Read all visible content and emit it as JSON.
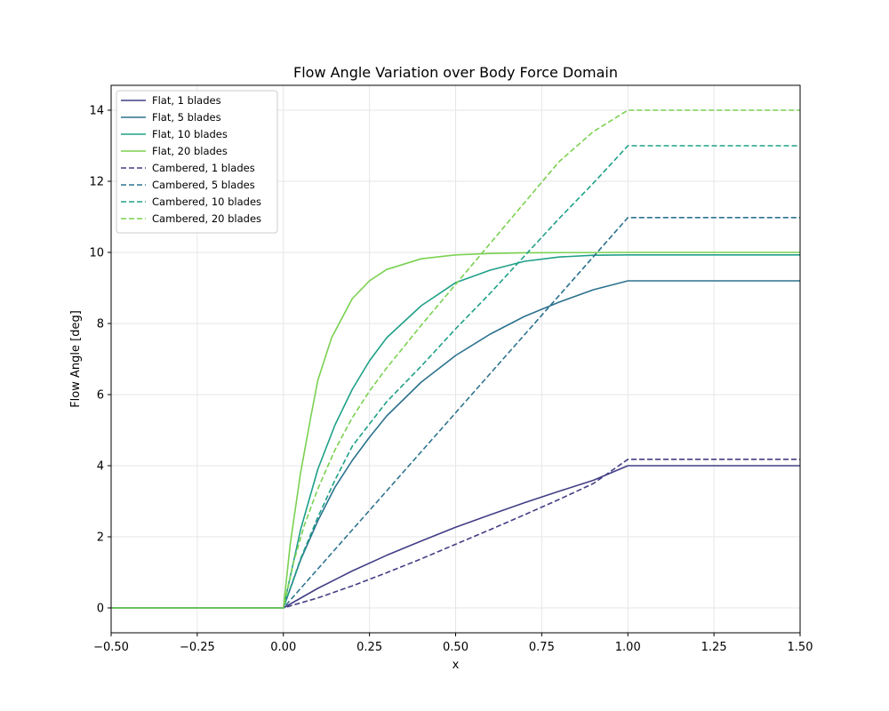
{
  "chart_data": {
    "type": "line",
    "title": "Flow Angle Variation over Body Force Domain",
    "xlabel": "x",
    "ylabel": "Flow Angle [deg]",
    "xlim": [
      -0.5,
      1.5
    ],
    "ylim": [
      -0.7,
      14.7
    ],
    "xticks": [
      -0.5,
      -0.25,
      0.0,
      0.25,
      0.5,
      0.75,
      1.0,
      1.25,
      1.5
    ],
    "xtick_labels": [
      "−0.50",
      "−0.25",
      "0.00",
      "0.25",
      "0.50",
      "0.75",
      "1.00",
      "1.25",
      "1.50"
    ],
    "yticks": [
      0,
      2,
      4,
      6,
      8,
      10,
      12,
      14
    ],
    "ytick_labels": [
      "0",
      "2",
      "4",
      "6",
      "8",
      "10",
      "12",
      "14"
    ],
    "grid": true,
    "legend_position": "top-left",
    "series": [
      {
        "name": "Flat, 1 blades",
        "color": "#433e85",
        "dash": "solid",
        "x": [
          -0.5,
          0,
          0.1,
          0.2,
          0.3,
          0.4,
          0.5,
          0.6,
          0.7,
          0.8,
          0.9,
          1.0,
          1.5
        ],
        "y": [
          0,
          0,
          0.55,
          1.04,
          1.48,
          1.88,
          2.27,
          2.62,
          2.96,
          3.28,
          3.59,
          4.0,
          4.0
        ]
      },
      {
        "name": "Flat, 5 blades",
        "color": "#2c728e",
        "dash": "solid",
        "x": [
          -0.5,
          0,
          0.05,
          0.1,
          0.15,
          0.2,
          0.25,
          0.3,
          0.4,
          0.5,
          0.6,
          0.7,
          0.8,
          0.9,
          1.0,
          1.5
        ],
        "y": [
          0,
          0,
          1.35,
          2.45,
          3.4,
          4.15,
          4.8,
          5.4,
          6.35,
          7.1,
          7.7,
          8.2,
          8.6,
          8.95,
          9.2,
          9.2
        ]
      },
      {
        "name": "Flat, 10 blades",
        "color": "#1fa088",
        "dash": "solid",
        "x": [
          -0.5,
          0,
          0.05,
          0.1,
          0.15,
          0.2,
          0.25,
          0.3,
          0.4,
          0.5,
          0.6,
          0.7,
          0.8,
          0.9,
          1.0,
          1.5
        ],
        "y": [
          0,
          0,
          2.2,
          3.9,
          5.15,
          6.15,
          6.95,
          7.6,
          8.5,
          9.15,
          9.5,
          9.75,
          9.87,
          9.92,
          9.93,
          9.93
        ]
      },
      {
        "name": "Flat, 20 blades",
        "color": "#7ad151",
        "dash": "solid",
        "x": [
          -0.5,
          0,
          0.02,
          0.05,
          0.08,
          0.1,
          0.14,
          0.2,
          0.25,
          0.3,
          0.4,
          0.5,
          0.6,
          0.7,
          1.0,
          1.5
        ],
        "y": [
          0,
          0,
          1.8,
          3.8,
          5.4,
          6.4,
          7.6,
          8.7,
          9.2,
          9.52,
          9.82,
          9.93,
          9.97,
          9.99,
          10.0,
          10.0
        ]
      },
      {
        "name": "Cambered, 1 blades",
        "color": "#433e85",
        "dash": "dashed",
        "x": [
          -0.5,
          0,
          0.1,
          0.2,
          0.3,
          0.4,
          0.5,
          0.6,
          0.7,
          0.8,
          0.9,
          1.0,
          1.5
        ],
        "y": [
          0,
          0,
          0.28,
          0.62,
          0.99,
          1.38,
          1.79,
          2.2,
          2.62,
          3.05,
          3.5,
          4.18,
          4.18
        ]
      },
      {
        "name": "Cambered, 5 blades",
        "color": "#2c728e",
        "dash": "dashed",
        "x": [
          -0.5,
          0,
          1.0,
          1.5
        ],
        "y": [
          0,
          0,
          10.98,
          10.98
        ]
      },
      {
        "name": "Cambered, 10 blades",
        "color": "#1fa088",
        "dash": "dashed",
        "x": [
          -0.5,
          0,
          0.05,
          0.1,
          0.15,
          0.2,
          0.3,
          0.4,
          0.5,
          0.6,
          0.7,
          0.8,
          0.9,
          1.0,
          1.5
        ],
        "y": [
          0,
          0,
          1.38,
          2.55,
          3.6,
          4.55,
          5.8,
          6.8,
          7.85,
          8.85,
          9.9,
          10.95,
          11.95,
          13.0,
          13.0
        ]
      },
      {
        "name": "Cambered, 20 blades",
        "color": "#7ad151",
        "dash": "dashed",
        "x": [
          -0.5,
          0,
          0.03,
          0.06,
          0.1,
          0.15,
          0.2,
          0.25,
          0.3,
          0.4,
          0.5,
          0.6,
          0.7,
          0.8,
          0.9,
          1.0,
          1.5
        ],
        "y": [
          0,
          0,
          1.3,
          2.3,
          3.35,
          4.45,
          5.35,
          6.1,
          6.75,
          7.95,
          9.1,
          10.25,
          11.4,
          12.55,
          13.4,
          14.0,
          14.0
        ]
      }
    ]
  }
}
